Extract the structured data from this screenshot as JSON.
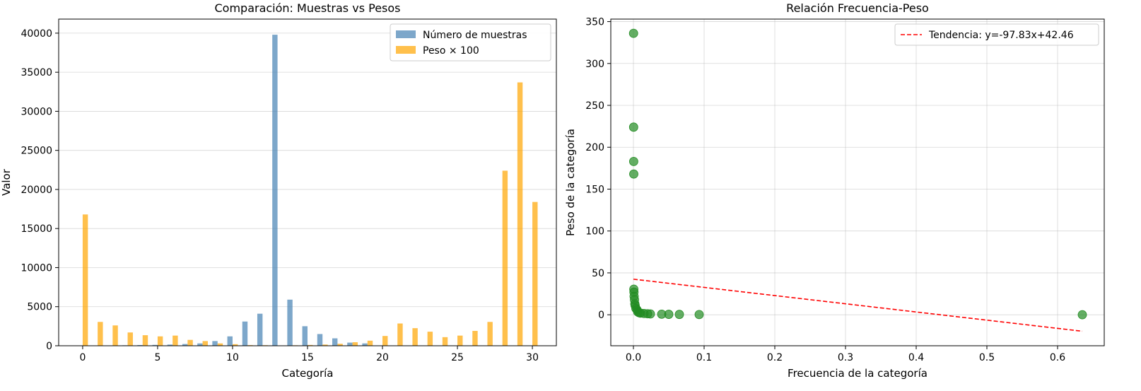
{
  "colors": {
    "muestras": "#4682b4",
    "peso": "#ffa500",
    "scatter": "#228b22",
    "trend": "#ff0000",
    "grid": "#b0b0b0"
  },
  "chart_data": [
    {
      "type": "bar",
      "title": "Comparación: Muestras vs Pesos",
      "xlabel": "Categoría",
      "ylabel": "Valor",
      "xlim": [
        -1.6,
        31.6
      ],
      "ylim": [
        0,
        41800
      ],
      "xticks": [
        0,
        5,
        10,
        15,
        20,
        25,
        30
      ],
      "yticks": [
        0,
        5000,
        10000,
        15000,
        20000,
        25000,
        30000,
        35000,
        40000
      ],
      "grid": "y",
      "legend_position": "top-right",
      "categories": [
        0,
        1,
        2,
        3,
        4,
        5,
        6,
        7,
        8,
        9,
        10,
        11,
        12,
        13,
        14,
        15,
        16,
        17,
        18,
        19,
        20,
        21,
        22,
        23,
        24,
        25,
        26,
        27,
        28,
        29,
        30
      ],
      "series": [
        {
          "name": "Número de muestras",
          "values": [
            15,
            20,
            30,
            60,
            90,
            110,
            150,
            220,
            300,
            600,
            1200,
            3100,
            4100,
            39800,
            5900,
            2500,
            1500,
            950,
            400,
            300,
            40,
            30,
            25,
            20,
            15,
            12,
            10,
            8,
            6,
            4,
            5
          ]
        },
        {
          "name": "Peso × 100",
          "values": [
            16800,
            3050,
            2600,
            1700,
            1350,
            1200,
            1300,
            750,
            600,
            300,
            200,
            80,
            70,
            10,
            60,
            100,
            150,
            250,
            450,
            650,
            1250,
            2850,
            2250,
            1800,
            1100,
            1300,
            1900,
            3050,
            22400,
            33700,
            18400
          ]
        }
      ]
    },
    {
      "type": "scatter",
      "title": "Relación Frecuencia-Peso",
      "xlabel": "Frecuencia de la categoría",
      "ylabel": "Peso de la categoría",
      "xlim": [
        -0.032,
        0.666
      ],
      "ylim": [
        -37,
        353
      ],
      "xticks": [
        0.0,
        0.1,
        0.2,
        0.3,
        0.4,
        0.5,
        0.6
      ],
      "yticks": [
        0,
        50,
        100,
        150,
        200,
        250,
        300,
        350
      ],
      "grid": "both",
      "legend_position": "top-right",
      "points": [
        [
          0.0002,
          336
        ],
        [
          0.0003,
          224
        ],
        [
          0.0004,
          183
        ],
        [
          0.0005,
          168
        ],
        [
          0.0006,
          30.5
        ],
        [
          0.0008,
          27
        ],
        [
          0.001,
          22
        ],
        [
          0.0015,
          18
        ],
        [
          0.002,
          13
        ],
        [
          0.0025,
          11
        ],
        [
          0.0035,
          7.5
        ],
        [
          0.005,
          6
        ],
        [
          0.006,
          3.5
        ],
        [
          0.008,
          2.5
        ],
        [
          0.01,
          2
        ],
        [
          0.015,
          1.5
        ],
        [
          0.02,
          1.2
        ],
        [
          0.024,
          1
        ],
        [
          0.04,
          0.7
        ],
        [
          0.05,
          0.5
        ],
        [
          0.065,
          0.4
        ],
        [
          0.093,
          0.25
        ],
        [
          0.635,
          0.02
        ]
      ],
      "trend": {
        "label": "Tendencia: y=-97.83x+42.46",
        "slope": -97.83,
        "intercept": 42.46,
        "x_range": [
          0.0,
          0.635
        ]
      }
    }
  ]
}
